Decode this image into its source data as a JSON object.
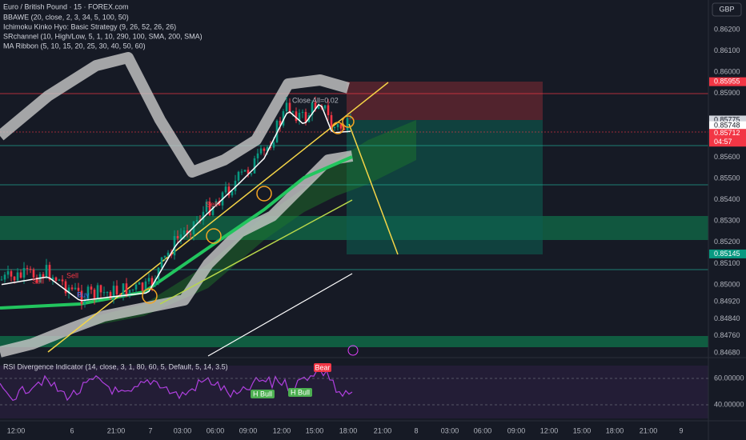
{
  "header": {
    "title": "Euro / British Pound · 15 · FOREX.com",
    "indicators": [
      "BBAWE (20, close, 2, 3, 34, 5, 100, 50)",
      "Ichimoku Kinko Hyo: Basic Strategy (9, 26, 52, 26, 26)",
      "SRchannel (10, High/Low, 5, 1, 10, 290, 100, SMA, 200, SMA)",
      "MA Ribbon (5, 10, 15, 20, 25, 30, 40, 50, 60)"
    ],
    "currency": "GBP"
  },
  "price_axis": {
    "ticks": [
      {
        "value": 0.862,
        "label": "0.86200"
      },
      {
        "value": 0.861,
        "label": "0.86100"
      },
      {
        "value": 0.86,
        "label": "0.86000"
      },
      {
        "value": 0.859,
        "label": "0.85900"
      },
      {
        "value": 0.856,
        "label": "0.85600"
      },
      {
        "value": 0.855,
        "label": "0.85500"
      },
      {
        "value": 0.854,
        "label": "0.85400"
      },
      {
        "value": 0.853,
        "label": "0.85300"
      },
      {
        "value": 0.852,
        "label": "0.85200"
      },
      {
        "value": 0.851,
        "label": "0.85100"
      },
      {
        "value": 0.85,
        "label": "0.85000"
      },
      {
        "value": 0.8492,
        "label": "0.84920"
      },
      {
        "value": 0.8484,
        "label": "0.84840"
      },
      {
        "value": 0.8476,
        "label": "0.84760"
      },
      {
        "value": 0.8468,
        "label": "0.84680"
      }
    ],
    "badges": [
      {
        "value": 0.85955,
        "label": "0.85955",
        "color": "#f23645"
      },
      {
        "value": 0.85775,
        "label": "0.85775",
        "color": "#d1d4dc"
      },
      {
        "value": 0.85748,
        "label": "0.85748",
        "color": "#ffffff"
      },
      {
        "value": 0.85712,
        "label": "0.85712",
        "color": "#f23645",
        "countdown": "04:57"
      },
      {
        "value": 0.85145,
        "label": "0.85145",
        "color": "#089981"
      }
    ]
  },
  "time_axis": [
    "12:00",
    "6",
    "21:00",
    "7",
    "03:00",
    "06:00",
    "09:00",
    "12:00",
    "15:00",
    "18:00",
    "21:00",
    "8",
    "03:00",
    "06:00",
    "09:00",
    "12:00",
    "15:00",
    "18:00",
    "21:00",
    "9"
  ],
  "annotations": {
    "close_all": "Close All=0.02",
    "sell": "Sell",
    "buy": "Buy"
  },
  "rsi": {
    "title": "RSI Divergence Indicator (14, close, 3, 1, 80, 60, 5, Default, 5, 14, 3.5)",
    "ticks": [
      {
        "value": 60,
        "label": "60.00000"
      },
      {
        "value": 40,
        "label": "40.00000"
      }
    ],
    "bear": "Bear",
    "bull": "H Bull"
  }
}
